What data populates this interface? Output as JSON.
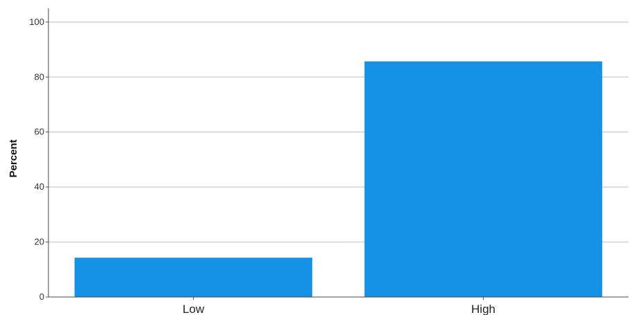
{
  "chart_data": {
    "type": "bar",
    "categories": [
      "Low",
      "High"
    ],
    "values": [
      14.3,
      85.7
    ],
    "title": "",
    "xlabel": "",
    "ylabel": "Percent",
    "ylim": [
      0,
      105
    ],
    "yticks": [
      0,
      20,
      40,
      60,
      80,
      100
    ],
    "grid": true,
    "bar_color": "#1592e6",
    "grid_color": "#d3d3d3"
  }
}
